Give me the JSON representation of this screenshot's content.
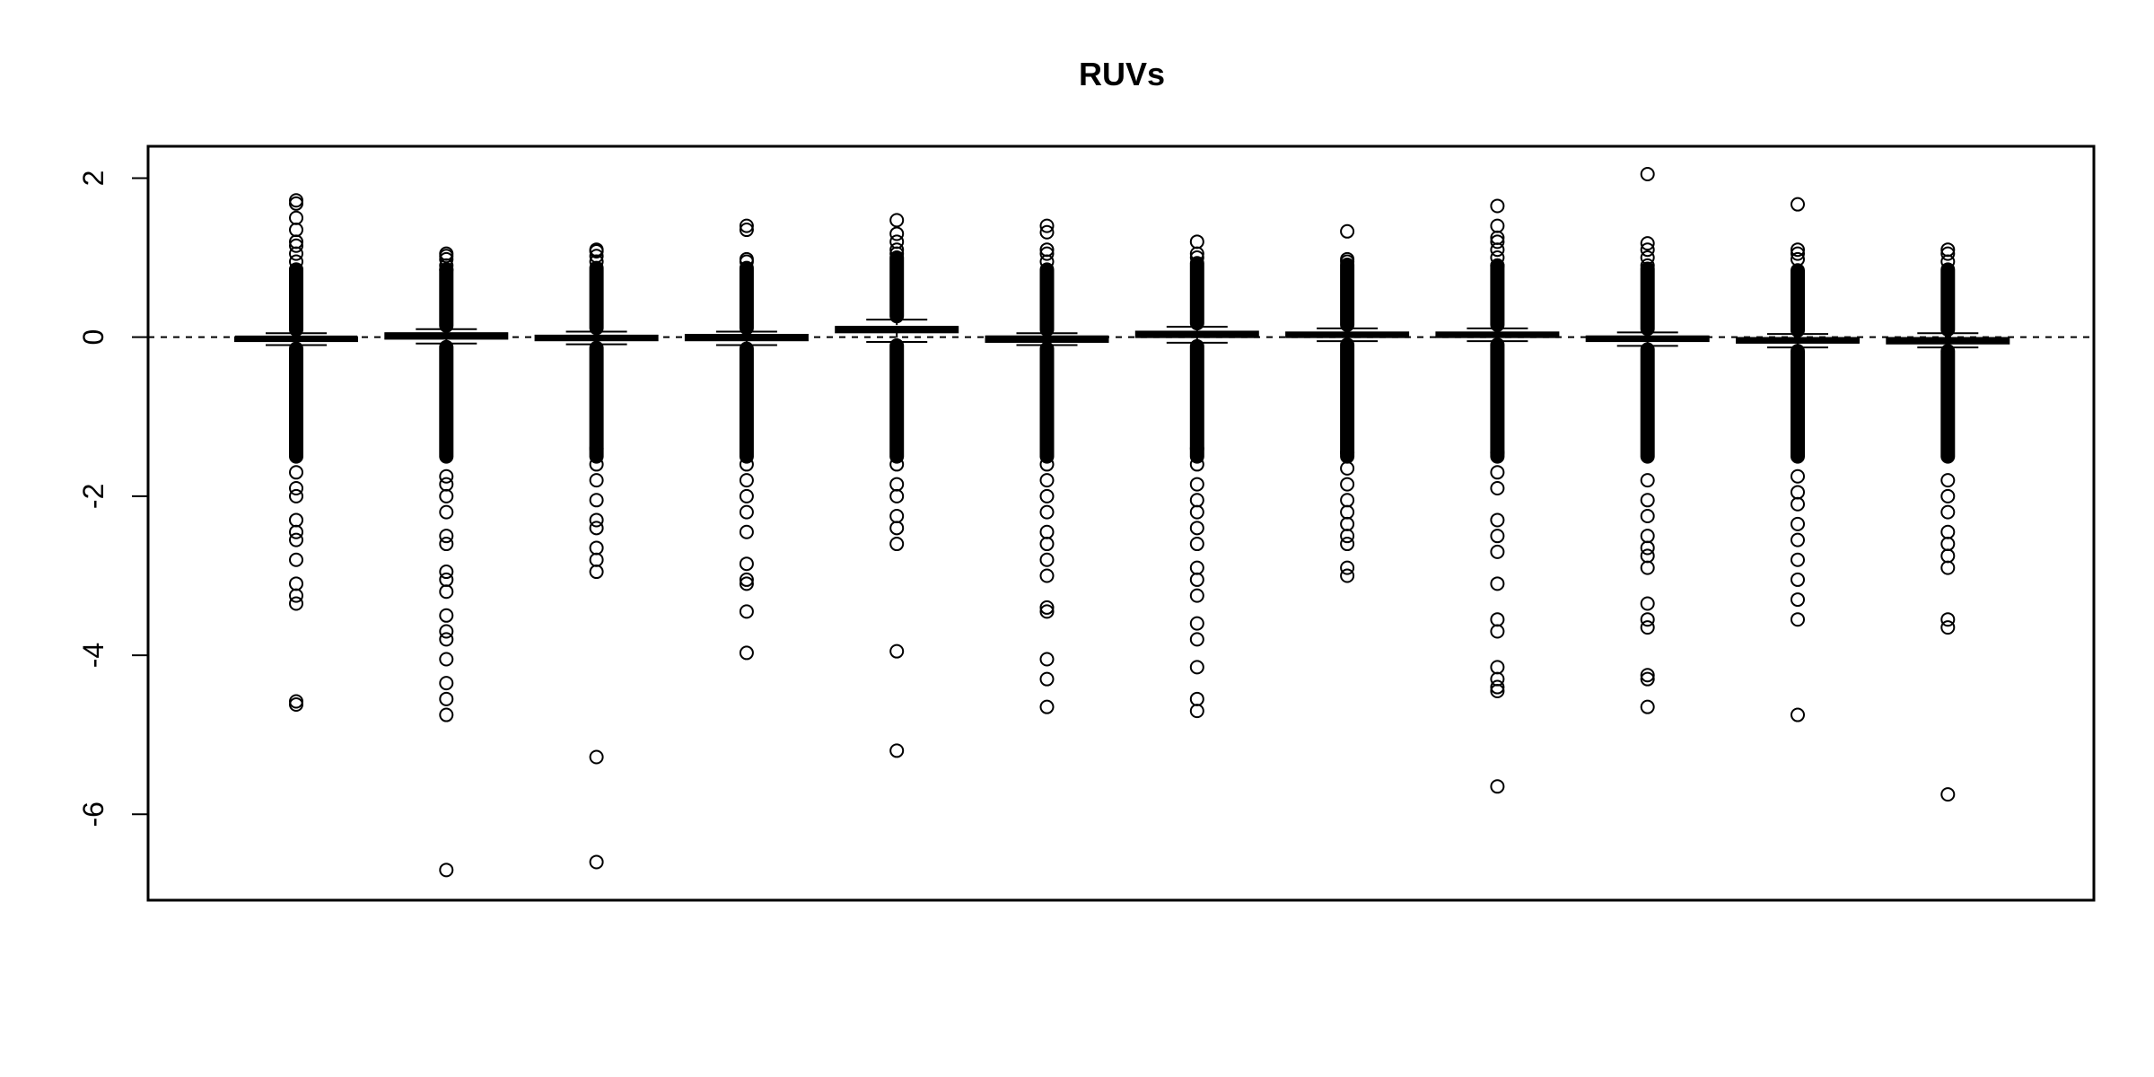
{
  "chart_data": {
    "type": "boxplot",
    "title": "RUVs",
    "xlabel": "",
    "ylabel": "",
    "ylim": [
      -7.08,
      2.4
    ],
    "y_ticks": [
      2,
      0,
      -2,
      -4,
      -6
    ],
    "y_tick_labels": [
      "2",
      "0",
      "-2",
      "-4",
      "-6"
    ],
    "reference_line": {
      "y": 0,
      "style": "dashed"
    },
    "grid": false,
    "legend": "none",
    "colors": {
      "stroke": "#000000",
      "background": "#ffffff"
    },
    "boxes": [
      {
        "median": -0.02,
        "q1": -0.05,
        "q3": 0.0,
        "whisker_low": -0.1,
        "whisker_high": 0.05,
        "outliers_high": [
          1.72,
          1.68,
          1.5,
          1.35,
          1.2,
          1.15,
          1.05,
          0.95,
          0.85
        ],
        "outliers_low": [
          -1.7,
          -1.9,
          -2.0,
          -2.3,
          -2.45,
          -2.55,
          -2.8,
          -3.1,
          -3.25,
          -3.35,
          -4.58,
          -4.62
        ]
      },
      {
        "median": 0.02,
        "q1": -0.02,
        "q3": 0.05,
        "whisker_low": -0.08,
        "whisker_high": 0.1,
        "outliers_high": [
          1.05,
          1.02,
          0.98,
          0.9,
          0.85
        ],
        "outliers_low": [
          -1.75,
          -1.85,
          -2.0,
          -2.2,
          -2.5,
          -2.6,
          -2.95,
          -3.05,
          -3.2,
          -3.5,
          -3.7,
          -3.8,
          -4.05,
          -4.35,
          -4.55,
          -4.75,
          -6.7
        ]
      },
      {
        "median": -0.01,
        "q1": -0.04,
        "q3": 0.02,
        "whisker_low": -0.09,
        "whisker_high": 0.07,
        "outliers_high": [
          1.1,
          1.08,
          1.02,
          0.95
        ],
        "outliers_low": [
          -1.4,
          -1.6,
          -1.8,
          -2.05,
          -2.3,
          -2.4,
          -2.65,
          -2.8,
          -2.95,
          -5.28,
          -6.6
        ]
      },
      {
        "median": 0.0,
        "q1": -0.04,
        "q3": 0.03,
        "whisker_low": -0.1,
        "whisker_high": 0.07,
        "outliers_high": [
          1.4,
          1.35,
          0.98,
          0.95
        ],
        "outliers_low": [
          -1.6,
          -1.8,
          -2.0,
          -2.2,
          -2.45,
          -2.85,
          -3.05,
          -3.1,
          -3.45,
          -3.97
        ]
      },
      {
        "median": 0.1,
        "q1": 0.06,
        "q3": 0.13,
        "whisker_low": -0.06,
        "whisker_high": 0.22,
        "outliers_high": [
          1.47,
          1.3,
          1.2,
          1.1,
          1.05
        ],
        "outliers_low": [
          -1.6,
          -1.85,
          -2.0,
          -2.25,
          -2.4,
          -2.6,
          -3.95,
          -5.2
        ]
      },
      {
        "median": -0.02,
        "q1": -0.06,
        "q3": 0.01,
        "whisker_low": -0.1,
        "whisker_high": 0.05,
        "outliers_high": [
          1.4,
          1.32,
          1.1,
          1.05,
          0.95
        ],
        "outliers_low": [
          -1.6,
          -1.8,
          -2.0,
          -2.2,
          -2.45,
          -2.6,
          -2.8,
          -3.0,
          -3.4,
          -3.45,
          -4.05,
          -4.3,
          -4.65
        ]
      },
      {
        "median": 0.04,
        "q1": 0.0,
        "q3": 0.07,
        "whisker_low": -0.07,
        "whisker_high": 0.13,
        "outliers_high": [
          1.2,
          1.05,
          1.0
        ],
        "outliers_low": [
          -1.4,
          -1.6,
          -1.85,
          -2.05,
          -2.2,
          -2.4,
          -2.6,
          -2.9,
          -3.05,
          -3.25,
          -3.6,
          -3.8,
          -4.15,
          -4.55,
          -4.7
        ]
      },
      {
        "median": 0.03,
        "q1": 0.0,
        "q3": 0.06,
        "whisker_low": -0.05,
        "whisker_high": 0.11,
        "outliers_high": [
          1.33,
          0.98,
          0.95
        ],
        "outliers_low": [
          -1.45,
          -1.65,
          -1.85,
          -2.05,
          -2.2,
          -2.35,
          -2.5,
          -2.6,
          -2.9,
          -3.0
        ]
      },
      {
        "median": 0.03,
        "q1": 0.0,
        "q3": 0.06,
        "whisker_low": -0.05,
        "whisker_high": 0.11,
        "outliers_high": [
          1.65,
          1.4,
          1.25,
          1.2,
          1.1,
          1.0,
          0.9
        ],
        "outliers_low": [
          -1.45,
          -1.7,
          -1.9,
          -2.3,
          -2.5,
          -2.7,
          -3.1,
          -3.55,
          -3.7,
          -4.15,
          -4.3,
          -4.4,
          -4.45,
          -5.65
        ]
      },
      {
        "median": -0.02,
        "q1": -0.05,
        "q3": 0.01,
        "whisker_low": -0.11,
        "whisker_high": 0.06,
        "outliers_high": [
          2.05,
          1.18,
          1.1,
          1.0,
          0.9
        ],
        "outliers_low": [
          -1.8,
          -2.05,
          -2.25,
          -2.5,
          -2.65,
          -2.75,
          -2.9,
          -3.35,
          -3.55,
          -3.65,
          -4.25,
          -4.3,
          -4.65
        ]
      },
      {
        "median": -0.04,
        "q1": -0.07,
        "q3": -0.01,
        "whisker_low": -0.13,
        "whisker_high": 0.04,
        "outliers_high": [
          1.67,
          1.1,
          1.05,
          0.98
        ],
        "outliers_low": [
          -1.75,
          -1.95,
          -2.1,
          -2.35,
          -2.55,
          -2.8,
          -3.05,
          -3.3,
          -3.55,
          -4.75
        ]
      },
      {
        "median": -0.04,
        "q1": -0.08,
        "q3": -0.01,
        "whisker_low": -0.13,
        "whisker_high": 0.05,
        "outliers_high": [
          1.1,
          1.05,
          0.95
        ],
        "outliers_low": [
          -1.8,
          -2.0,
          -2.2,
          -2.45,
          -2.6,
          -2.75,
          -2.9,
          -3.55,
          -3.65,
          -5.75
        ]
      }
    ]
  }
}
